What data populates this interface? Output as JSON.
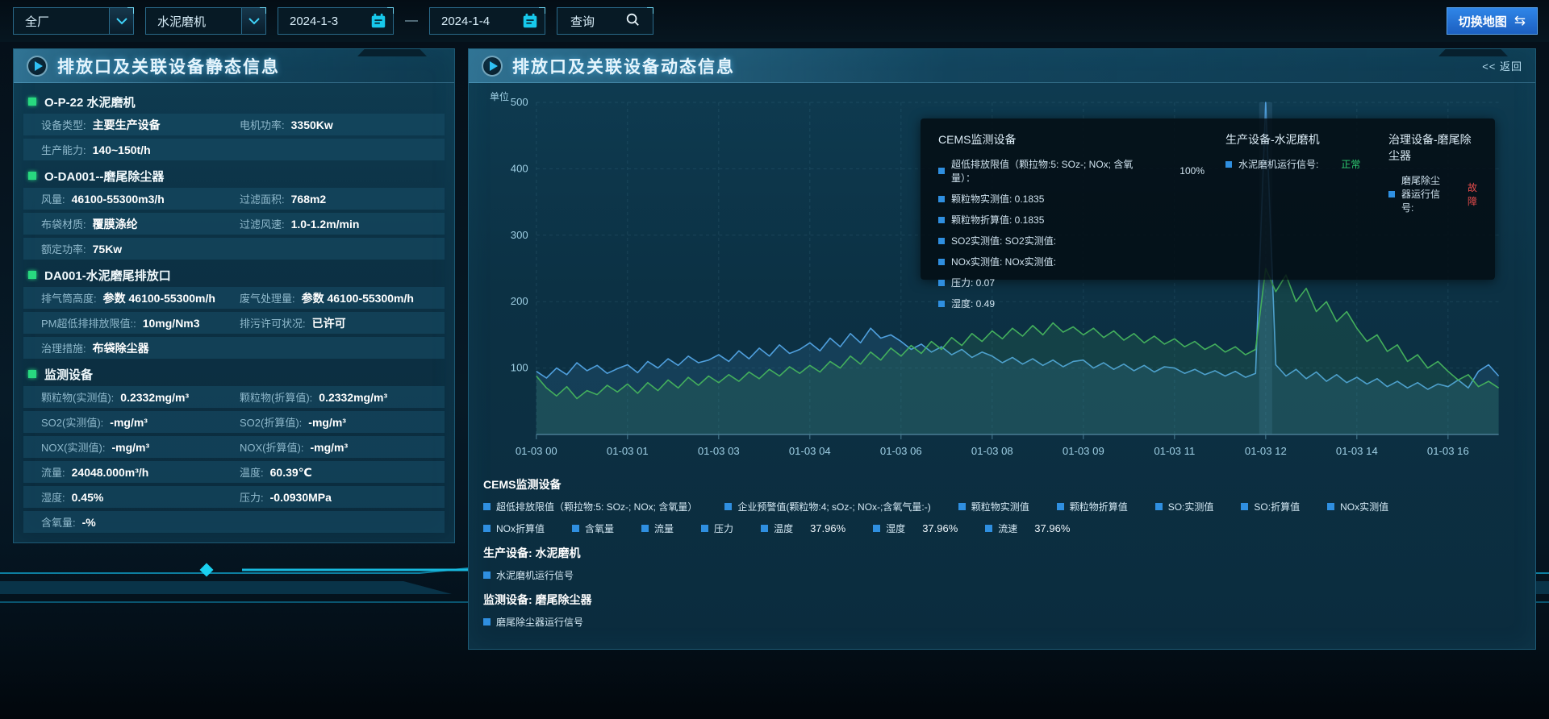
{
  "colors": {
    "accent": "#35c8f8",
    "normal_green": "#2ecc71",
    "fault_red": "#e84c4c",
    "legend_marker": "#2f8fe0",
    "map_button_blue": "#2f86e8"
  },
  "top_bar": {
    "plant_select": {
      "value": "全厂"
    },
    "device_select": {
      "value": "水泥磨机"
    },
    "date_start": "2024-1-3",
    "date_separator": "—",
    "date_end": "2024-1-4",
    "query_label": "查询",
    "switch_map_label": "切换地图",
    "switch_map_icon": "⇆"
  },
  "left_panel": {
    "title": "排放口及关联设备静态信息",
    "sections": [
      {
        "header": "O-P-22 水泥磨机",
        "rows": [
          [
            {
              "label": "设备类型:",
              "value": "主要生产设备"
            },
            {
              "label": "电机功率:",
              "value": "3350Kw"
            }
          ],
          [
            {
              "label": "生产能力:",
              "value": "140~150t/h"
            }
          ]
        ]
      },
      {
        "header": "O-DA001--磨尾除尘器",
        "rows": [
          [
            {
              "label": "风量:",
              "value": "46100-55300m3/h"
            },
            {
              "label": "过滤面积:",
              "value": "768m2"
            }
          ],
          [
            {
              "label": "布袋材质:",
              "value": "覆膜涤纶"
            },
            {
              "label": "过滤风速:",
              "value": "1.0-1.2m/min"
            }
          ],
          [
            {
              "label": "额定功率:",
              "value": "75Kw"
            }
          ]
        ]
      },
      {
        "header": "DA001-水泥磨尾排放口",
        "rows": [
          [
            {
              "label": "排气筒高度:",
              "value": "参数 46100-55300m/h"
            },
            {
              "label": "废气处理量:",
              "value": "参数 46100-55300m/h"
            }
          ],
          [
            {
              "label": "PM超低排排放限值::",
              "value": "10mg/Nm3"
            },
            {
              "label": "排污许可状况:",
              "value": "已许可"
            }
          ],
          [
            {
              "label": "治理措施:",
              "value": "布袋除尘器"
            }
          ]
        ]
      },
      {
        "header": "监测设备",
        "rows": [
          [
            {
              "label": "颗粒物(实测值):",
              "value": "0.2332mg/m³"
            },
            {
              "label": "颗粒物(折算值):",
              "value": "0.2332mg/m³"
            }
          ],
          [
            {
              "label": "SO2(实测值):",
              "value": "-mg/m³"
            },
            {
              "label": "SO2(折算值):",
              "value": "-mg/m³"
            }
          ],
          [
            {
              "label": "NOX(实测值):",
              "value": "-mg/m³"
            },
            {
              "label": "NOX(折算值):",
              "value": "-mg/m³"
            }
          ],
          [
            {
              "label": "流量:",
              "value": "24048.000m³/h"
            },
            {
              "label": "温度:",
              "value": "60.39℃"
            }
          ],
          [
            {
              "label": "湿度:",
              "value": "0.45%"
            },
            {
              "label": "压力:",
              "value": "-0.0930MPa"
            }
          ],
          [
            {
              "label": "含氧量:",
              "value": "-%"
            }
          ]
        ]
      }
    ]
  },
  "right_panel": {
    "title": "排放口及关联设备动态信息",
    "back_label": "<< 返回",
    "unit_label": "单位",
    "tooltip": {
      "columns": [
        {
          "heading": "CEMS监测设备",
          "items": [
            {
              "label": "超低排放限值（颗拉物:5: SOz-; NOx; 含氧量）：",
              "value": "100%"
            },
            {
              "label": "颗粒物实测值: 0.1835"
            },
            {
              "label": "颗粒物折算值: 0.1835"
            },
            {
              "label": "SO2实测值: SO2实测值:"
            },
            {
              "label": "NOx实测值: NOx实测值:"
            },
            {
              "label": "压力: 0.07"
            },
            {
              "label": "湿度: 0.49"
            }
          ]
        },
        {
          "heading": "生产设备-水泥磨机",
          "items": [
            {
              "label": "水泥磨机运行信号:",
              "value": "正常",
              "value_color": "#2ecc71"
            }
          ]
        },
        {
          "heading": "治理设备-磨尾除尘器",
          "items": [
            {
              "label": "磨尾除尘器运行信号:",
              "value": "故障",
              "value_color": "#e84c4c"
            }
          ]
        }
      ]
    },
    "legend": {
      "cems_heading": "CEMS监测设备",
      "rows": [
        [
          {
            "label": "超低排放限值（颗拉物:5: SOz-; NOx; 含氧量）"
          },
          {
            "label": "企业预警值(颗粒物:4; sOz-; NOx-;含氧气量:-)"
          },
          {
            "label": "颗粒物实测值"
          },
          {
            "label": "颗粒物折算值"
          },
          {
            "label": "SO:实测值"
          },
          {
            "label": "SO:折算值"
          },
          {
            "label": "NOx实测值"
          }
        ],
        [
          {
            "label": "NOx折算值"
          },
          {
            "label": "含氧量"
          },
          {
            "label": "流量"
          },
          {
            "label": "压力"
          },
          {
            "label": "温度",
            "value": "37.96%"
          },
          {
            "label": "湿度",
            "value": "37.96%"
          },
          {
            "label": "流速",
            "value": "37.96%"
          }
        ]
      ],
      "production_heading": "生产设备: 水泥磨机",
      "production_items": [
        {
          "label": "水泥磨机运行信号"
        }
      ],
      "monitor_heading": "监测设备: 磨尾除尘器",
      "monitor_items": [
        {
          "label": "磨尾除尘器运行信号"
        }
      ]
    }
  },
  "chart_data": {
    "type": "line",
    "title": "排放口及关联设备动态信息",
    "ylabel": "单位",
    "ylim": [
      0,
      500
    ],
    "yticks": [
      100,
      200,
      300,
      400,
      500
    ],
    "grid": true,
    "x_tick_labels": [
      "01-03 00",
      "01-03 01",
      "01-03 03",
      "01-03 04",
      "01-03 06",
      "01-03 08",
      "01-03 09",
      "01-03 11",
      "01-03 12",
      "01-03 14",
      "01-03 16"
    ],
    "points_per_tick": 9,
    "highlight_point_index": 72,
    "series": [
      {
        "name": "blue-line",
        "color": "#4f9fdd",
        "fill": "rgba(70,140,200,0.16)",
        "values": [
          95,
          85,
          100,
          90,
          108,
          96,
          104,
          92,
          99,
          105,
          93,
          110,
          100,
          114,
          104,
          118,
          108,
          112,
          120,
          110,
          126,
          114,
          130,
          118,
          135,
          122,
          128,
          138,
          126,
          145,
          132,
          152,
          138,
          160,
          145,
          150,
          140,
          128,
          136,
          124,
          132,
          120,
          128,
          116,
          124,
          118,
          108,
          116,
          106,
          114,
          104,
          112,
          102,
          110,
          112,
          100,
          108,
          98,
          106,
          96,
          104,
          94,
          102,
          100,
          92,
          98,
          90,
          96,
          88,
          95,
          86,
          92,
          500,
          105,
          88,
          98,
          84,
          94,
          80,
          90,
          78,
          86,
          76,
          84,
          72,
          80,
          70,
          78,
          68,
          76,
          72,
          82,
          70,
          95,
          105,
          88
        ]
      },
      {
        "name": "green-line",
        "color": "#43ae5c",
        "fill": "rgba(70,170,100,0.14)",
        "values": [
          88,
          70,
          58,
          72,
          54,
          66,
          60,
          74,
          64,
          76,
          62,
          78,
          66,
          82,
          70,
          86,
          74,
          88,
          78,
          90,
          80,
          94,
          84,
          98,
          88,
          102,
          92,
          104,
          94,
          110,
          100,
          118,
          106,
          124,
          112,
          130,
          118,
          134,
          122,
          140,
          128,
          146,
          134,
          152,
          140,
          156,
          144,
          160,
          148,
          164,
          150,
          168,
          154,
          162,
          150,
          160,
          146,
          156,
          142,
          152,
          138,
          148,
          136,
          144,
          132,
          140,
          128,
          136,
          124,
          132,
          120,
          128,
          250,
          215,
          240,
          200,
          220,
          185,
          200,
          170,
          185,
          160,
          140,
          150,
          125,
          135,
          110,
          120,
          100,
          110,
          95,
          82,
          90,
          72,
          80,
          70
        ]
      }
    ]
  }
}
